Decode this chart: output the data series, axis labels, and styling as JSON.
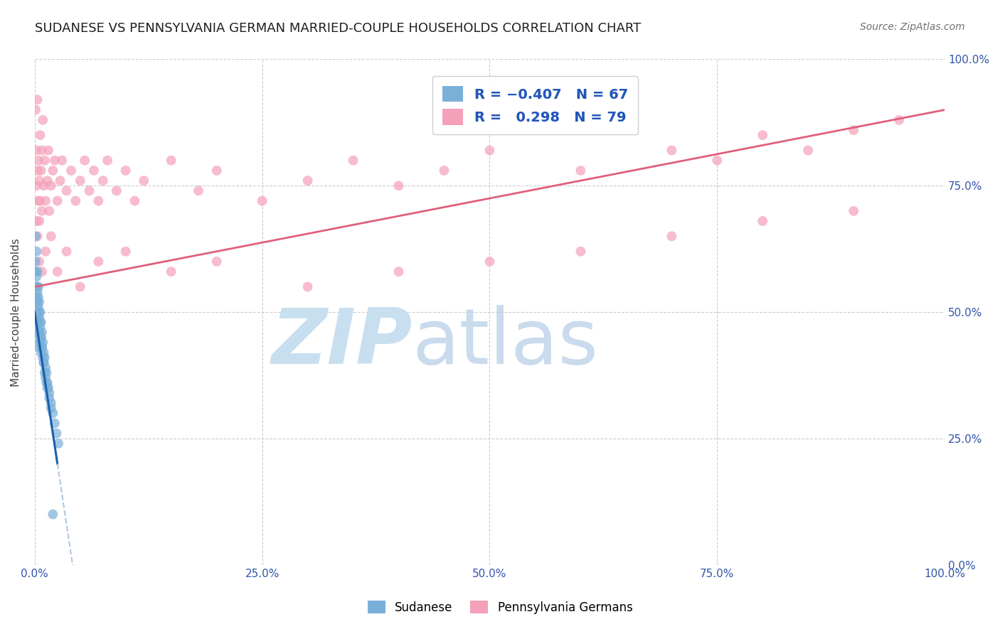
{
  "title": "SUDANESE VS PENNSYLVANIA GERMAN MARRIED-COUPLE HOUSEHOLDS CORRELATION CHART",
  "source": "Source: ZipAtlas.com",
  "ylabel": "Married-couple Households",
  "sudanese_color": "#7ab0d8",
  "pennsylvania_color": "#f4a0b8",
  "regression_sudanese_color": "#1a5fad",
  "regression_pennsylvania_color": "#e0607a",
  "regression_dashed_color": "#b0c8e0",
  "watermark_zip_color": "#c8dff0",
  "watermark_atlas_color": "#b8d0e8",
  "sudanese_x": [
    0.001,
    0.001,
    0.001,
    0.001,
    0.001,
    0.002,
    0.002,
    0.002,
    0.002,
    0.002,
    0.003,
    0.003,
    0.003,
    0.003,
    0.004,
    0.004,
    0.004,
    0.004,
    0.005,
    0.005,
    0.005,
    0.005,
    0.006,
    0.006,
    0.006,
    0.007,
    0.007,
    0.008,
    0.008,
    0.009,
    0.01,
    0.01,
    0.011,
    0.012,
    0.013,
    0.014,
    0.015,
    0.016,
    0.018,
    0.02,
    0.022,
    0.024,
    0.026,
    0.001,
    0.002,
    0.003,
    0.004,
    0.005,
    0.006,
    0.007,
    0.008,
    0.009,
    0.01,
    0.011,
    0.012,
    0.013,
    0.014,
    0.016,
    0.018,
    0.02,
    0.001,
    0.002,
    0.003,
    0.004,
    0.005,
    0.006,
    0.007
  ],
  "sudanese_y": [
    0.6,
    0.58,
    0.55,
    0.52,
    0.48,
    0.57,
    0.55,
    0.52,
    0.5,
    0.47,
    0.54,
    0.52,
    0.49,
    0.46,
    0.53,
    0.51,
    0.48,
    0.45,
    0.52,
    0.49,
    0.46,
    0.43,
    0.5,
    0.47,
    0.44,
    0.48,
    0.45,
    0.46,
    0.43,
    0.44,
    0.42,
    0.4,
    0.41,
    0.39,
    0.38,
    0.36,
    0.35,
    0.34,
    0.32,
    0.3,
    0.28,
    0.26,
    0.24,
    0.65,
    0.62,
    0.58,
    0.55,
    0.5,
    0.48,
    0.45,
    0.43,
    0.41,
    0.4,
    0.38,
    0.37,
    0.36,
    0.35,
    0.33,
    0.31,
    0.1,
    0.55,
    0.53,
    0.5,
    0.48,
    0.46,
    0.44,
    0.42
  ],
  "pennsylvania_x": [
    0.001,
    0.001,
    0.002,
    0.002,
    0.002,
    0.003,
    0.003,
    0.003,
    0.004,
    0.004,
    0.005,
    0.005,
    0.006,
    0.006,
    0.007,
    0.008,
    0.008,
    0.009,
    0.01,
    0.011,
    0.012,
    0.014,
    0.015,
    0.016,
    0.018,
    0.02,
    0.022,
    0.025,
    0.028,
    0.03,
    0.035,
    0.04,
    0.045,
    0.05,
    0.055,
    0.06,
    0.065,
    0.07,
    0.075,
    0.08,
    0.09,
    0.1,
    0.11,
    0.12,
    0.15,
    0.18,
    0.2,
    0.25,
    0.3,
    0.35,
    0.4,
    0.45,
    0.5,
    0.6,
    0.7,
    0.75,
    0.8,
    0.85,
    0.9,
    0.95,
    0.003,
    0.005,
    0.008,
    0.012,
    0.018,
    0.025,
    0.035,
    0.05,
    0.07,
    0.1,
    0.15,
    0.2,
    0.3,
    0.4,
    0.5,
    0.6,
    0.7,
    0.8,
    0.9
  ],
  "pennsylvania_y": [
    0.58,
    0.9,
    0.82,
    0.75,
    0.68,
    0.92,
    0.78,
    0.65,
    0.8,
    0.72,
    0.76,
    0.68,
    0.85,
    0.72,
    0.78,
    0.82,
    0.7,
    0.88,
    0.75,
    0.8,
    0.72,
    0.76,
    0.82,
    0.7,
    0.75,
    0.78,
    0.8,
    0.72,
    0.76,
    0.8,
    0.74,
    0.78,
    0.72,
    0.76,
    0.8,
    0.74,
    0.78,
    0.72,
    0.76,
    0.8,
    0.74,
    0.78,
    0.72,
    0.76,
    0.8,
    0.74,
    0.78,
    0.72,
    0.76,
    0.8,
    0.75,
    0.78,
    0.82,
    0.78,
    0.82,
    0.8,
    0.85,
    0.82,
    0.86,
    0.88,
    0.55,
    0.6,
    0.58,
    0.62,
    0.65,
    0.58,
    0.62,
    0.55,
    0.6,
    0.62,
    0.58,
    0.6,
    0.55,
    0.58,
    0.6,
    0.62,
    0.65,
    0.68,
    0.7
  ],
  "xmin": 0.0,
  "xmax": 1.0,
  "ymin": 0.0,
  "ymax": 1.0,
  "xticks": [
    0.0,
    0.25,
    0.5,
    0.75,
    1.0
  ],
  "xticklabels": [
    "0.0%",
    "25.0%",
    "50.0%",
    "75.0%",
    "100.0%"
  ],
  "yticks": [
    0.0,
    0.25,
    0.5,
    0.75,
    1.0
  ],
  "yticklabels_right": [
    "0.0%",
    "25.0%",
    "50.0%",
    "75.0%",
    "100.0%"
  ],
  "legend_R_sudanese": "R = -0.407",
  "legend_N_sudanese": "N = 67",
  "legend_R_penn": "R =  0.298",
  "legend_N_penn": "N = 79",
  "legend_bottom": [
    "Sudanese",
    "Pennsylvania Germans"
  ],
  "title_fontsize": 13,
  "tick_fontsize": 11,
  "tick_color": "#3355aa",
  "axis_label_color": "#404040"
}
